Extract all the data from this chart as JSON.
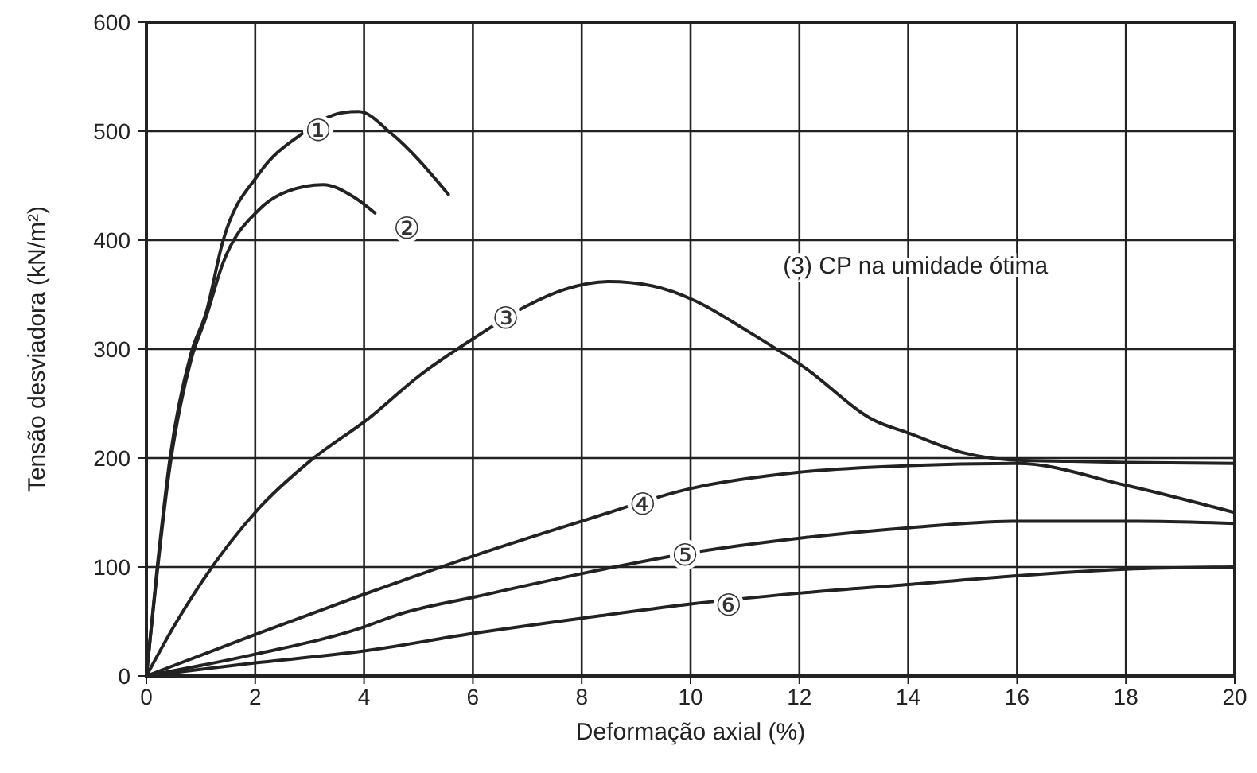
{
  "chart_data": {
    "type": "line",
    "xlabel": "Deformação axial (%)",
    "ylabel": "Tensão desviadora (kN/m²)",
    "xlim": [
      0,
      20
    ],
    "xticks": [
      0,
      2,
      4,
      6,
      8,
      10,
      12,
      14,
      16,
      18,
      20
    ],
    "ylim": [
      0,
      600
    ],
    "yticks": [
      0,
      100,
      200,
      300,
      400,
      500,
      600
    ],
    "grid": true,
    "marker": "none",
    "line_style": "solid",
    "series": [
      {
        "color": "#222222",
        "x": [
          0,
          0.2,
          0.44,
          0.82,
          1.1,
          1.4,
          2.07,
          2.87,
          3.6,
          3.9,
          4.5,
          5.55
        ],
        "values": [
          0,
          100,
          202,
          296,
          334,
          398,
          461,
          498,
          517,
          518,
          498,
          442
        ]
      },
      {
        "color": "#222222",
        "x": [
          0,
          0.44,
          0.82,
          1.1,
          1.4,
          2.07,
          2.6,
          3.25,
          3.8,
          4.2
        ],
        "values": [
          0,
          195,
          290,
          330,
          378,
          428,
          445,
          451,
          440,
          425
        ]
      },
      {
        "color": "#222222",
        "x": [
          0,
          0.5,
          1,
          2.07,
          3,
          4.1,
          5,
          6.08,
          7,
          7.7,
          8.5,
          9.3,
          10.1,
          11,
          12.1,
          13.4,
          14,
          15,
          16,
          17,
          18,
          20
        ],
        "values": [
          0,
          45,
          85,
          154,
          197,
          237,
          275,
          312,
          340,
          355,
          362,
          358,
          344,
          318,
          283,
          234,
          223,
          205,
          198,
          197,
          196,
          195
        ]
      },
      {
        "color": "#222222",
        "x": [
          0,
          2,
          4,
          6,
          8,
          10,
          12,
          14,
          16,
          18,
          20
        ],
        "values": [
          0,
          38,
          75,
          110,
          142,
          172,
          187,
          193,
          195,
          175,
          150
        ]
      },
      {
        "color": "#222222",
        "x": [
          0,
          2,
          4,
          4.6,
          6.08,
          8.1,
          10,
          12.1,
          14,
          16,
          18.2,
          20
        ],
        "values": [
          0,
          20,
          45,
          56,
          73,
          95,
          113,
          127,
          136,
          142,
          142,
          140
        ]
      },
      {
        "color": "#222222",
        "x": [
          0,
          2,
          4,
          6,
          8,
          10,
          12,
          14,
          16,
          18,
          20
        ],
        "values": [
          0,
          12,
          23,
          39,
          53,
          66,
          76,
          84,
          92,
          98,
          100
        ]
      }
    ],
    "annotations": [
      {
        "text": "①",
        "x": 3.16,
        "y": 500
      },
      {
        "text": "②",
        "x": 4.2,
        "y": 425
      },
      {
        "text": "③",
        "x": 6.6,
        "y": 328
      },
      {
        "text": "④",
        "x": 9.12,
        "y": 157
      },
      {
        "text": "⑤",
        "x": 9.9,
        "y": 110
      },
      {
        "text": "⑥",
        "x": 10.7,
        "y": 64
      },
      "(3) CP na umidade ótima"
    ]
  }
}
